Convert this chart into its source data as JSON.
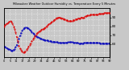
{
  "title": "Milwaukee Weather Outdoor Humidity vs. Temperature Every 5 Minutes",
  "bg_color": "#c8c8c8",
  "plot_bg": "#c8c8c8",
  "grid_color": "#ffffff",
  "temp_color": "#dd0000",
  "humid_color": "#0000bb",
  "temp_x": [
    0,
    1,
    2,
    3,
    4,
    5,
    6,
    7,
    8,
    9,
    10,
    11,
    12,
    13,
    14,
    15,
    16,
    17,
    18,
    19,
    20,
    21,
    22,
    23,
    24,
    25,
    26,
    27,
    28,
    29,
    30,
    31,
    32,
    33,
    34,
    35,
    36,
    37,
    38,
    39,
    40,
    41,
    42,
    43,
    44,
    45,
    46,
    47,
    48,
    49,
    50,
    51,
    52,
    53,
    54,
    55,
    56,
    57,
    58,
    59,
    60,
    61,
    62,
    63,
    64,
    65,
    66,
    67,
    68,
    69,
    70,
    71,
    72,
    73,
    74,
    75,
    76,
    77,
    78,
    79,
    80,
    81,
    82,
    83,
    84,
    85,
    86,
    87,
    88,
    89,
    90,
    91,
    92,
    93,
    94,
    95,
    96,
    97,
    98,
    99
  ],
  "temp_y": [
    80,
    81,
    82,
    83,
    84,
    85,
    86,
    85,
    83,
    80,
    77,
    73,
    68,
    63,
    58,
    55,
    53,
    52,
    51,
    51,
    52,
    53,
    55,
    57,
    59,
    61,
    63,
    65,
    67,
    69,
    71,
    72,
    73,
    74,
    75,
    76,
    77,
    77,
    78,
    79,
    80,
    81,
    82,
    83,
    84,
    85,
    86,
    87,
    88,
    89,
    90,
    90,
    90,
    90,
    89,
    89,
    88,
    88,
    87,
    87,
    86,
    86,
    86,
    86,
    86,
    87,
    87,
    88,
    88,
    89,
    89,
    89,
    90,
    90,
    90,
    90,
    91,
    91,
    92,
    92,
    92,
    93,
    93,
    93,
    93,
    93,
    93,
    93,
    93,
    94,
    94,
    94,
    94,
    94,
    95,
    95,
    95,
    95,
    95,
    95
  ],
  "humid_x": [
    0,
    1,
    2,
    3,
    4,
    5,
    6,
    7,
    8,
    9,
    10,
    11,
    12,
    13,
    14,
    15,
    16,
    17,
    18,
    19,
    20,
    21,
    22,
    23,
    24,
    25,
    26,
    27,
    28,
    29,
    30,
    31,
    32,
    33,
    34,
    35,
    36,
    37,
    38,
    39,
    40,
    41,
    42,
    43,
    44,
    45,
    46,
    47,
    48,
    49,
    50,
    51,
    52,
    53,
    54,
    55,
    56,
    57,
    58,
    59,
    60,
    61,
    62,
    63,
    64,
    65,
    66,
    67,
    68,
    69,
    70,
    71,
    72,
    73,
    74,
    75,
    76,
    77,
    78,
    79,
    80,
    81,
    82,
    83,
    84,
    85,
    86,
    87,
    88,
    89,
    90,
    91,
    92,
    93,
    94,
    95,
    96,
    97,
    98,
    99
  ],
  "humid_y": [
    30,
    29,
    28,
    27,
    26,
    25,
    24,
    23,
    23,
    24,
    26,
    29,
    33,
    38,
    44,
    50,
    55,
    59,
    62,
    64,
    65,
    65,
    64,
    63,
    61,
    59,
    57,
    55,
    53,
    51,
    49,
    48,
    47,
    46,
    45,
    44,
    43,
    43,
    42,
    42,
    41,
    41,
    40,
    40,
    40,
    39,
    39,
    39,
    38,
    38,
    38,
    37,
    37,
    37,
    37,
    37,
    37,
    37,
    37,
    37,
    38,
    38,
    38,
    38,
    38,
    37,
    37,
    37,
    37,
    37,
    36,
    36,
    36,
    36,
    36,
    37,
    37,
    37,
    37,
    37,
    37,
    37,
    37,
    37,
    37,
    37,
    37,
    37,
    37,
    37,
    36,
    36,
    36,
    36,
    36,
    36,
    36,
    36,
    36,
    36
  ],
  "yticks_right": [
    90,
    80,
    70,
    60
  ],
  "yticks_left": [],
  "xlim": [
    0,
    99
  ],
  "ylim_temp": [
    45,
    100
  ],
  "ylim_humid": [
    10,
    100
  ],
  "linewidth": 0.7,
  "markersize": 1.0,
  "title_fontsize": 2.5,
  "tick_labelsize": 3.0
}
